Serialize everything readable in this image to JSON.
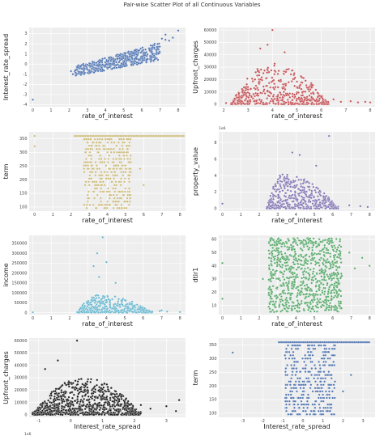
{
  "figure": {
    "title": "Pair-wise Scatter Plot of all Continuous Variables",
    "background": "#ffffff",
    "panel_background": "#eeeeee"
  },
  "chart_data": [
    {
      "type": "scatter",
      "color": "#4c72b0",
      "xlabel": "rate_of_interest",
      "ylabel": "Interest_rate_spread",
      "xlim": [
        -0.2,
        8.4
      ],
      "ylim": [
        -4.2,
        3.6
      ],
      "xticks": [
        0,
        1,
        2,
        3,
        4,
        5,
        6,
        7,
        8
      ],
      "yticks": [
        -4,
        -3,
        -2,
        -1,
        0,
        1,
        2,
        3
      ],
      "x_offset_label": "",
      "y_offset_label": "",
      "cloud": {
        "kind": "band",
        "x": [
          2.3,
          7.0
        ],
        "y_low": [
          -1.2,
          0.4
        ],
        "y_high": [
          -0.2,
          2.1
        ],
        "n": 520
      },
      "outliers": [
        {
          "x": 0.0,
          "y": -3.5
        },
        {
          "x": 7.1,
          "y": 2.5
        },
        {
          "x": 7.3,
          "y": 2.4
        },
        {
          "x": 7.5,
          "y": 2.3
        },
        {
          "x": 7.7,
          "y": 2.6
        },
        {
          "x": 8.0,
          "y": 3.3
        },
        {
          "x": 6.7,
          "y": 2.0
        },
        {
          "x": 2.2,
          "y": -1.0
        },
        {
          "x": 2.1,
          "y": -0.7
        },
        {
          "x": 7.3,
          "y": 2.9
        }
      ]
    },
    {
      "type": "scatter",
      "color": "#c44e52",
      "xlabel": "rate_of_interest",
      "ylabel": "Upfront_charges",
      "xlim": [
        1.8,
        8.2
      ],
      "ylim": [
        -2000,
        62000
      ],
      "xticks": [
        2,
        3,
        4,
        5,
        6,
        7,
        8
      ],
      "yticks": [
        0,
        10000,
        20000,
        30000,
        40000,
        50000,
        60000
      ],
      "x_offset_label": "",
      "y_offset_label": "",
      "cloud": {
        "kind": "hump",
        "x": [
          2.3,
          6.3
        ],
        "peak_x": 4.0,
        "peak_y": 33000,
        "n": 500
      },
      "outliers": [
        {
          "x": 4.0,
          "y": 60000
        },
        {
          "x": 3.8,
          "y": 48000
        },
        {
          "x": 3.5,
          "y": 45000
        },
        {
          "x": 4.5,
          "y": 42000
        },
        {
          "x": 2.1,
          "y": 1000
        },
        {
          "x": 7.2,
          "y": 2500
        },
        {
          "x": 7.5,
          "y": 1500
        },
        {
          "x": 7.8,
          "y": 2000
        },
        {
          "x": 8.0,
          "y": 1500
        },
        {
          "x": 6.8,
          "y": 2000
        },
        {
          "x": 6.5,
          "y": 4000
        }
      ]
    },
    {
      "type": "scatter",
      "color": "#ccb974",
      "xlabel": "rate_of_interest",
      "ylabel": "term",
      "xlim": [
        -0.3,
        8.3
      ],
      "ylim": [
        85,
        375
      ],
      "xticks": [
        0,
        1,
        2,
        3,
        4,
        5,
        6,
        7,
        8
      ],
      "yticks": [
        100,
        150,
        200,
        250,
        300,
        350
      ],
      "x_offset_label": "",
      "y_offset_label": "",
      "cloud": {
        "kind": "levels",
        "x": [
          2.7,
          5.3
        ],
        "levels": [
          96,
          108,
          120,
          132,
          144,
          156,
          168,
          180,
          192,
          204,
          216,
          228,
          240,
          252,
          264,
          276,
          288,
          300,
          312,
          324,
          336,
          348
        ],
        "n": 380
      },
      "top_row": {
        "x": [
          2.2,
          8.2
        ],
        "y": 360,
        "n": 70
      },
      "outliers": [
        {
          "x": 0.0,
          "y": 322
        },
        {
          "x": 0.0,
          "y": 360
        },
        {
          "x": 6.0,
          "y": 180
        },
        {
          "x": 5.8,
          "y": 240
        }
      ]
    },
    {
      "type": "scatter",
      "color": "#8172b2",
      "xlabel": "rate_of_interest",
      "ylabel": "property_value",
      "xlim": [
        -0.2,
        8.3
      ],
      "ylim": [
        -0.3,
        9.3
      ],
      "xticks": [
        0,
        1,
        2,
        3,
        4,
        5,
        6,
        7,
        8
      ],
      "yticks": [
        0,
        2,
        4,
        6,
        8
      ],
      "x_offset_label": "",
      "y_offset_label": "1e6",
      "cloud": {
        "kind": "hump",
        "x": [
          2.4,
          6.3
        ],
        "peak_x": 3.3,
        "peak_y": 4.2,
        "n": 450
      },
      "outliers": [
        {
          "x": 0.0,
          "y": 0.6
        },
        {
          "x": 5.8,
          "y": 8.8
        },
        {
          "x": 4.2,
          "y": 6.5
        },
        {
          "x": 3.8,
          "y": 6.8
        },
        {
          "x": 5.1,
          "y": 5.2
        },
        {
          "x": 7.5,
          "y": 0.3
        },
        {
          "x": 7.9,
          "y": 0.2
        },
        {
          "x": 6.9,
          "y": 0.4
        }
      ]
    },
    {
      "type": "scatter",
      "color": "#64b5cd",
      "xlabel": "rate_of_interest",
      "ylabel": "income",
      "xlim": [
        -0.2,
        8.3
      ],
      "ylim": [
        -10000,
        390000
      ],
      "xticks": [
        0,
        1,
        2,
        3,
        4,
        5,
        6,
        7,
        8
      ],
      "yticks": [
        0,
        50000,
        100000,
        150000,
        200000,
        250000,
        300000,
        350000
      ],
      "x_offset_label": "",
      "y_offset_label": "",
      "cloud": {
        "kind": "hump",
        "x": [
          2.4,
          6.5
        ],
        "peak_x": 3.6,
        "peak_y": 90000,
        "n": 420
      },
      "outliers": [
        {
          "x": 0.0,
          "y": 2000
        },
        {
          "x": 3.8,
          "y": 380000
        },
        {
          "x": 3.5,
          "y": 300000
        },
        {
          "x": 4.0,
          "y": 255000
        },
        {
          "x": 3.3,
          "y": 235000
        },
        {
          "x": 3.6,
          "y": 180000
        },
        {
          "x": 4.5,
          "y": 150000
        },
        {
          "x": 7.0,
          "y": 12000
        },
        {
          "x": 7.3,
          "y": 5000
        },
        {
          "x": 6.9,
          "y": 8000
        },
        {
          "x": 8.0,
          "y": 3000
        }
      ]
    },
    {
      "type": "scatter",
      "color": "#55a868",
      "xlabel": "rate_of_interest",
      "ylabel": "dtir1",
      "xlim": [
        -0.2,
        8.3
      ],
      "ylim": [
        3,
        63
      ],
      "xticks": [
        0,
        1,
        2,
        3,
        4,
        5,
        6,
        7,
        8
      ],
      "yticks": [
        10,
        20,
        30,
        40,
        50,
        60
      ],
      "x_offset_label": "",
      "y_offset_label": "",
      "cloud": {
        "kind": "block",
        "x": [
          2.5,
          6.5
        ],
        "y": [
          5,
          61
        ],
        "n": 900
      },
      "outliers": [
        {
          "x": 0.0,
          "y": 15
        },
        {
          "x": 0.0,
          "y": 42
        },
        {
          "x": 7.2,
          "y": 38
        },
        {
          "x": 7.6,
          "y": 46
        },
        {
          "x": 8.0,
          "y": 40
        },
        {
          "x": 6.9,
          "y": 50
        },
        {
          "x": 2.2,
          "y": 30
        }
      ]
    },
    {
      "type": "scatter",
      "color": "#1a1a1a",
      "xlabel": "Interest_rate_spread",
      "ylabel": "Upfront_charges",
      "xlim": [
        -1.3,
        3.6
      ],
      "ylim": [
        -2000,
        62000
      ],
      "xticks": [
        -1,
        0,
        1,
        2,
        3
      ],
      "yticks": [
        0,
        10000,
        20000,
        30000,
        40000,
        50000,
        60000
      ],
      "x_offset_label": "1e6",
      "y_offset_label": "",
      "cloud": {
        "kind": "hump",
        "x": [
          -1.2,
          2.2
        ],
        "peak_x": 0.4,
        "peak_y": 30000,
        "n": 900
      },
      "outliers": [
        {
          "x": -0.4,
          "y": 44000
        },
        {
          "x": 0.2,
          "y": 60000
        },
        {
          "x": -0.8,
          "y": 37000
        },
        {
          "x": 2.2,
          "y": 8000
        },
        {
          "x": 2.5,
          "y": 5000
        },
        {
          "x": 3.0,
          "y": 7000
        },
        {
          "x": 3.4,
          "y": 12000
        },
        {
          "x": 3.3,
          "y": 3000
        }
      ]
    },
    {
      "type": "scatter",
      "color": "#4c72b0",
      "xlabel": "Interest_rate_spread",
      "ylabel": "term",
      "xlim": [
        -4.2,
        3.6
      ],
      "ylim": [
        85,
        375
      ],
      "xticks": [
        -3,
        -2,
        -1,
        0,
        1,
        2,
        3
      ],
      "yticks": [
        100,
        150,
        200,
        250,
        300,
        350
      ],
      "x_offset_label": "",
      "y_offset_label": "",
      "cloud": {
        "kind": "levels",
        "x": [
          -0.9,
          1.6
        ],
        "levels": [
          96,
          108,
          120,
          132,
          144,
          156,
          168,
          180,
          192,
          204,
          216,
          228,
          240,
          252,
          264,
          276,
          288,
          300,
          312,
          324,
          336,
          348
        ],
        "n": 380
      },
      "top_row": {
        "x": [
          -1.2,
          3.3
        ],
        "y": 360,
        "n": 70
      },
      "outliers": [
        {
          "x": -3.5,
          "y": 322
        },
        {
          "x": 2.0,
          "y": 180
        },
        {
          "x": 2.4,
          "y": 240
        }
      ]
    }
  ]
}
